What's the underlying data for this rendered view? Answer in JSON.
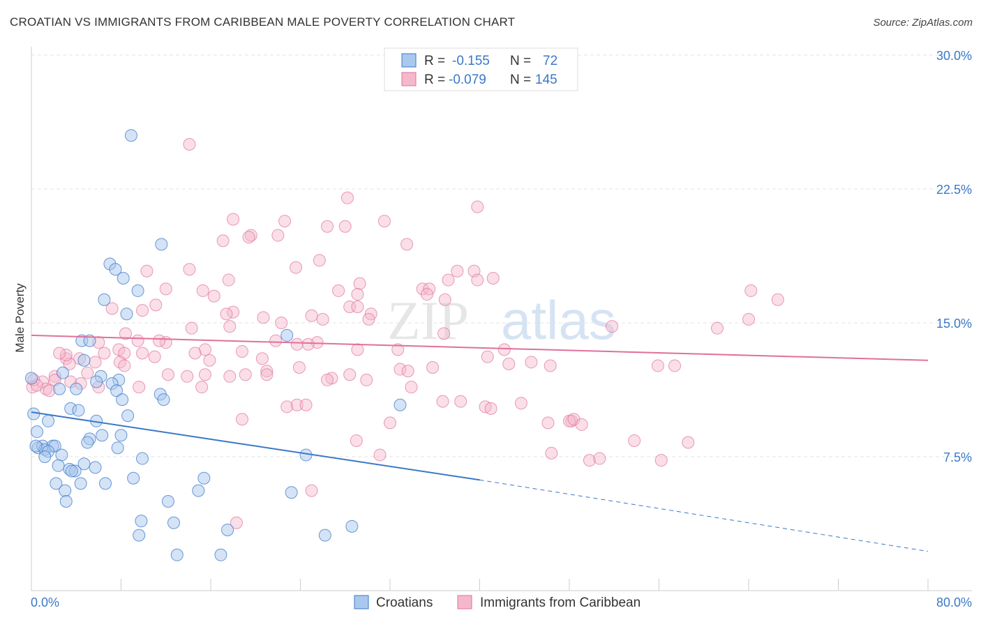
{
  "header": {
    "title": "CROATIAN VS IMMIGRANTS FROM CARIBBEAN MALE POVERTY CORRELATION CHART",
    "source": "Source: ZipAtlas.com"
  },
  "watermark": {
    "part1": "ZIP",
    "part2": "atlas"
  },
  "legend_top": {
    "rows": [
      {
        "r_label": "R =",
        "r_value": "-0.155",
        "n_label": "N =",
        "n_value": "72",
        "color": "#a9c8ee"
      },
      {
        "r_label": "R =",
        "r_value": "-0.079",
        "n_label": "N =",
        "n_value": "145",
        "color": "#f5b8cb"
      }
    ]
  },
  "legend_bottom": [
    {
      "label": "Croatians",
      "color": "#a9c8ee"
    },
    {
      "label": "Immigrants from Caribbean",
      "color": "#f5b8cb"
    }
  ],
  "chart_data": {
    "type": "scatter",
    "title": "CROATIAN VS IMMIGRANTS FROM CARIBBEAN MALE POVERTY CORRELATION CHART",
    "ylabel": "Male Poverty",
    "xlabel": "",
    "xlim": [
      0,
      80
    ],
    "ylim": [
      0,
      30
    ],
    "x_tick_labels": [
      "0.0%",
      "80.0%"
    ],
    "y_tick_labels": [
      "7.5%",
      "15.0%",
      "22.5%",
      "30.0%"
    ],
    "y_ticks": [
      7.5,
      15,
      22.5,
      30
    ],
    "grid": true,
    "colors": {
      "blue": "#3a78c7",
      "blue_fill": "#a9c8ee",
      "pink": "#e0709a",
      "pink_fill": "#f5b8cb"
    },
    "series": [
      {
        "name": "Croatians",
        "color": "#3a78c7",
        "trend": {
          "x": [
            0,
            40
          ],
          "y": [
            10.0,
            6.2
          ],
          "dashed_to": [
            80,
            2.2
          ]
        },
        "points": [
          [
            8.9,
            25.5
          ],
          [
            11.6,
            19.4
          ],
          [
            7.0,
            18.3
          ],
          [
            7.5,
            18.0
          ],
          [
            8.2,
            17.5
          ],
          [
            9.5,
            16.8
          ],
          [
            6.5,
            16.3
          ],
          [
            8.5,
            15.5
          ],
          [
            22.8,
            14.3
          ],
          [
            4.5,
            14.0
          ],
          [
            5.2,
            14.0
          ],
          [
            4.7,
            12.9
          ],
          [
            2.8,
            12.2
          ],
          [
            6.2,
            12.0
          ],
          [
            7.8,
            11.8
          ],
          [
            7.2,
            11.6
          ],
          [
            5.8,
            11.7
          ],
          [
            0.0,
            11.9
          ],
          [
            2.5,
            11.3
          ],
          [
            4.0,
            11.3
          ],
          [
            7.6,
            11.2
          ],
          [
            11.5,
            11.0
          ],
          [
            8.1,
            10.7
          ],
          [
            11.8,
            10.7
          ],
          [
            32.9,
            10.4
          ],
          [
            3.5,
            10.2
          ],
          [
            4.2,
            10.1
          ],
          [
            0.2,
            9.9
          ],
          [
            8.6,
            9.8
          ],
          [
            1.5,
            9.5
          ],
          [
            5.8,
            9.5
          ],
          [
            0.5,
            8.9
          ],
          [
            6.3,
            8.7
          ],
          [
            8.0,
            8.7
          ],
          [
            5.2,
            8.5
          ],
          [
            5.0,
            8.3
          ],
          [
            0.6,
            8.0
          ],
          [
            1.0,
            8.1
          ],
          [
            1.2,
            7.9
          ],
          [
            1.9,
            8.1
          ],
          [
            2.1,
            8.1
          ],
          [
            7.7,
            8.0
          ],
          [
            1.5,
            7.8
          ],
          [
            24.5,
            7.6
          ],
          [
            1.2,
            7.5
          ],
          [
            2.7,
            7.6
          ],
          [
            9.9,
            7.4
          ],
          [
            4.7,
            7.1
          ],
          [
            2.4,
            7.0
          ],
          [
            5.7,
            6.9
          ],
          [
            3.4,
            6.8
          ],
          [
            3.9,
            6.7
          ],
          [
            3.6,
            6.7
          ],
          [
            15.4,
            6.3
          ],
          [
            9.1,
            6.3
          ],
          [
            2.2,
            6.0
          ],
          [
            4.4,
            6.0
          ],
          [
            6.6,
            6.0
          ],
          [
            3.0,
            5.6
          ],
          [
            14.9,
            5.6
          ],
          [
            23.2,
            5.5
          ],
          [
            12.2,
            5.0
          ],
          [
            3.1,
            5.0
          ],
          [
            9.8,
            3.9
          ],
          [
            12.7,
            3.8
          ],
          [
            17.5,
            3.4
          ],
          [
            28.6,
            3.6
          ],
          [
            9.6,
            3.1
          ],
          [
            26.2,
            3.1
          ],
          [
            13.0,
            2.0
          ],
          [
            16.9,
            2.0
          ],
          [
            0.4,
            8.1
          ]
        ]
      },
      {
        "name": "Immigrants from Caribbean",
        "color": "#e0709a",
        "trend": {
          "x": [
            0,
            80
          ],
          "y": [
            14.3,
            12.9
          ]
        },
        "points": [
          [
            14.1,
            25.0
          ],
          [
            28.2,
            22.0
          ],
          [
            39.8,
            21.5
          ],
          [
            18.0,
            20.8
          ],
          [
            22.6,
            20.7
          ],
          [
            31.5,
            20.7
          ],
          [
            26.4,
            20.4
          ],
          [
            28.0,
            20.4
          ],
          [
            22.0,
            19.9
          ],
          [
            19.6,
            19.9
          ],
          [
            19.4,
            19.8
          ],
          [
            17.1,
            19.6
          ],
          [
            33.5,
            19.4
          ],
          [
            25.7,
            18.5
          ],
          [
            23.6,
            18.1
          ],
          [
            14.1,
            18.0
          ],
          [
            10.3,
            17.9
          ],
          [
            38.0,
            17.9
          ],
          [
            39.5,
            17.9
          ],
          [
            37.2,
            17.4
          ],
          [
            39.8,
            17.4
          ],
          [
            41.2,
            17.5
          ],
          [
            17.6,
            17.4
          ],
          [
            29.3,
            17.2
          ],
          [
            12.0,
            16.9
          ],
          [
            34.9,
            16.9
          ],
          [
            35.5,
            16.9
          ],
          [
            27.4,
            16.8
          ],
          [
            15.3,
            16.8
          ],
          [
            29.1,
            16.6
          ],
          [
            64.2,
            16.8
          ],
          [
            66.6,
            16.3
          ],
          [
            35.3,
            16.6
          ],
          [
            16.3,
            16.5
          ],
          [
            36.9,
            16.3
          ],
          [
            28.4,
            15.9
          ],
          [
            7.2,
            15.8
          ],
          [
            9.9,
            15.7
          ],
          [
            29.1,
            15.9
          ],
          [
            30.3,
            15.5
          ],
          [
            11.1,
            16.0
          ],
          [
            18.0,
            15.6
          ],
          [
            17.4,
            15.5
          ],
          [
            20.7,
            15.3
          ],
          [
            25.0,
            15.4
          ],
          [
            22.3,
            15.0
          ],
          [
            26.0,
            15.2
          ],
          [
            64.0,
            15.2
          ],
          [
            30.1,
            15.2
          ],
          [
            14.3,
            14.7
          ],
          [
            17.7,
            14.8
          ],
          [
            51.8,
            14.8
          ],
          [
            61.2,
            14.7
          ],
          [
            36.8,
            14.4
          ],
          [
            8.4,
            14.4
          ],
          [
            9.5,
            14.0
          ],
          [
            12.0,
            13.9
          ],
          [
            11.4,
            14.0
          ],
          [
            21.8,
            14.0
          ],
          [
            25.5,
            13.9
          ],
          [
            24.7,
            13.8
          ],
          [
            23.7,
            13.8
          ],
          [
            15.5,
            13.5
          ],
          [
            18.8,
            13.4
          ],
          [
            29.1,
            13.5
          ],
          [
            32.7,
            13.5
          ],
          [
            42.2,
            13.5
          ],
          [
            14.6,
            13.3
          ],
          [
            6.0,
            13.9
          ],
          [
            6.5,
            13.3
          ],
          [
            7.8,
            13.5
          ],
          [
            8.3,
            13.3
          ],
          [
            9.9,
            13.3
          ],
          [
            11.0,
            13.1
          ],
          [
            3.1,
            13.0
          ],
          [
            4.3,
            13.0
          ],
          [
            5.7,
            12.8
          ],
          [
            7.9,
            12.8
          ],
          [
            8.3,
            12.6
          ],
          [
            2.1,
            12.0
          ],
          [
            3.4,
            12.7
          ],
          [
            5.0,
            12.2
          ],
          [
            1.0,
            11.7
          ],
          [
            0.1,
            11.4
          ],
          [
            1.3,
            11.3
          ],
          [
            2.1,
            11.8
          ],
          [
            3.5,
            11.7
          ],
          [
            4.4,
            11.6
          ],
          [
            6.0,
            11.4
          ],
          [
            9.6,
            11.4
          ],
          [
            0.2,
            11.8
          ],
          [
            15.5,
            12.1
          ],
          [
            15.9,
            12.9
          ],
          [
            20.6,
            13.0
          ],
          [
            21.0,
            12.3
          ],
          [
            23.9,
            12.5
          ],
          [
            28.4,
            12.1
          ],
          [
            29.9,
            11.8
          ],
          [
            32.9,
            12.4
          ],
          [
            33.6,
            12.3
          ],
          [
            35.8,
            12.5
          ],
          [
            40.7,
            13.1
          ],
          [
            42.6,
            12.7
          ],
          [
            44.6,
            12.8
          ],
          [
            46.3,
            12.6
          ],
          [
            55.9,
            12.6
          ],
          [
            57.4,
            12.6
          ],
          [
            12.2,
            12.1
          ],
          [
            13.9,
            12.0
          ],
          [
            17.7,
            12.0
          ],
          [
            19.1,
            12.1
          ],
          [
            21.0,
            12.1
          ],
          [
            26.8,
            11.9
          ],
          [
            26.4,
            11.8
          ],
          [
            33.9,
            11.4
          ],
          [
            15.2,
            11.4
          ],
          [
            36.7,
            10.6
          ],
          [
            38.3,
            10.6
          ],
          [
            40.5,
            10.3
          ],
          [
            41.0,
            10.2
          ],
          [
            43.7,
            10.5
          ],
          [
            22.8,
            10.3
          ],
          [
            23.7,
            10.4
          ],
          [
            24.5,
            10.4
          ],
          [
            18.8,
            9.6
          ],
          [
            32.0,
            9.4
          ],
          [
            46.1,
            9.4
          ],
          [
            48.2,
            9.5
          ],
          [
            48.0,
            9.5
          ],
          [
            48.4,
            9.6
          ],
          [
            49.1,
            9.3
          ],
          [
            29.0,
            8.4
          ],
          [
            53.8,
            8.4
          ],
          [
            58.6,
            8.3
          ],
          [
            46.4,
            7.7
          ],
          [
            31.1,
            7.6
          ],
          [
            49.8,
            7.3
          ],
          [
            50.7,
            7.4
          ],
          [
            56.2,
            7.3
          ],
          [
            25.0,
            5.6
          ],
          [
            18.3,
            3.8
          ],
          [
            3.1,
            13.2
          ],
          [
            0.5,
            11.5
          ],
          [
            1.6,
            11.2
          ],
          [
            2.5,
            13.3
          ]
        ]
      }
    ]
  }
}
